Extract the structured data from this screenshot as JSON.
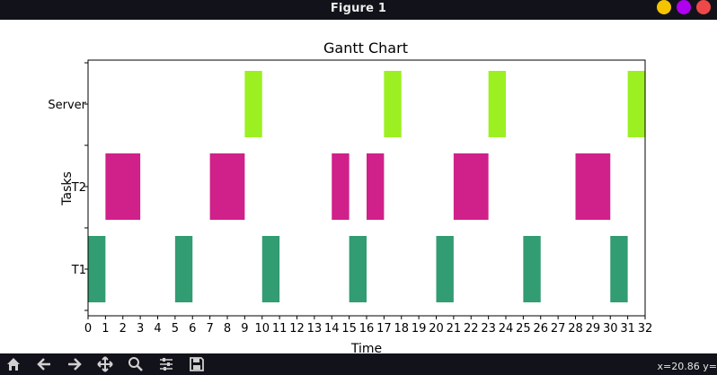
{
  "window": {
    "title": "Figure 1",
    "buttons": [
      {
        "name": "minimize",
        "color": "#f5c400"
      },
      {
        "name": "maximize",
        "color": "#b000f0"
      },
      {
        "name": "close",
        "color": "#f04848"
      }
    ]
  },
  "toolbar": {
    "icons": [
      "home-icon",
      "back-arrow-icon",
      "forward-arrow-icon",
      "pan-icon",
      "zoom-icon",
      "configure-subplots-icon",
      "save-icon"
    ],
    "coordinates": "x=20.86 y="
  },
  "chart_data": {
    "type": "gantt",
    "title": "Gantt Chart",
    "xlabel": "Time",
    "ylabel": "Tasks",
    "xlim": [
      0,
      32
    ],
    "xticks": [
      0,
      1,
      2,
      3,
      4,
      5,
      6,
      7,
      8,
      9,
      10,
      11,
      12,
      13,
      14,
      15,
      16,
      17,
      18,
      19,
      20,
      21,
      22,
      23,
      24,
      25,
      26,
      27,
      28,
      29,
      30,
      31,
      32
    ],
    "categories": [
      "T1",
      "T2",
      "Server"
    ],
    "series": [
      {
        "name": "T1",
        "color": "#329c72",
        "intervals": [
          [
            0,
            1
          ],
          [
            5,
            6
          ],
          [
            10,
            11
          ],
          [
            15,
            16
          ],
          [
            20,
            21
          ],
          [
            25,
            26
          ],
          [
            30,
            31
          ]
        ]
      },
      {
        "name": "T2",
        "color": "#d0208a",
        "intervals": [
          [
            1,
            3
          ],
          [
            7,
            9
          ],
          [
            14,
            15
          ],
          [
            16,
            17
          ],
          [
            21,
            23
          ],
          [
            28,
            30
          ]
        ]
      },
      {
        "name": "Server",
        "color": "#9cf022",
        "intervals": [
          [
            9,
            10
          ],
          [
            17,
            18
          ],
          [
            23,
            24
          ],
          [
            31,
            32
          ]
        ]
      }
    ],
    "grid": false
  }
}
